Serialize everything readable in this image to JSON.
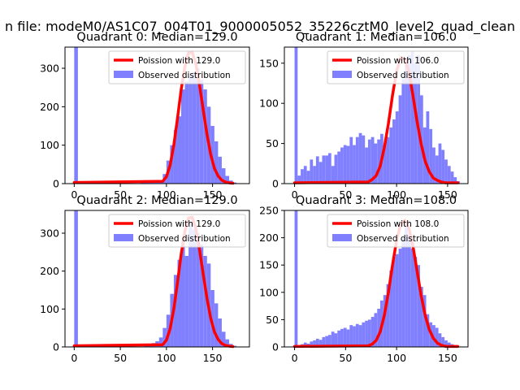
{
  "suptitle": "n file: modeM0/AS1C07_004T01_9000005052_35226cztM0_level2_quad_clean",
  "colors": {
    "line": "#ff0000",
    "bars": "#8080ff",
    "axes": "#000000"
  },
  "chart_data": [
    {
      "type": "bar",
      "title": "Quadrant 0: Median=129.0",
      "xlim": [
        -10,
        190
      ],
      "ylim": [
        0,
        355
      ],
      "xticks": [
        0,
        50,
        100,
        150
      ],
      "yticks": [
        0,
        100,
        200,
        300
      ],
      "legend": {
        "location": "top-right",
        "line_label": "Poission with 129.0",
        "bar_label": "Observed distribution"
      },
      "histogram": {
        "bin_width": 4,
        "bin_starts": [
          0,
          72,
          76,
          80,
          84,
          88,
          92,
          96,
          100,
          104,
          108,
          112,
          116,
          120,
          124,
          128,
          132,
          136,
          140,
          144,
          148,
          152,
          156,
          160,
          164,
          168,
          172
        ],
        "counts": [
          355,
          3,
          7,
          8,
          5,
          4,
          8,
          25,
          60,
          100,
          140,
          175,
          245,
          265,
          280,
          290,
          300,
          270,
          245,
          200,
          150,
          110,
          70,
          40,
          20,
          8,
          3
        ]
      },
      "poisson": {
        "x": [
          0,
          96,
          100,
          104,
          108,
          112,
          116,
          120,
          124,
          128,
          132,
          136,
          140,
          144,
          148,
          152,
          156,
          160,
          164,
          168,
          172
        ],
        "y": [
          3,
          6,
          18,
          48,
          100,
          170,
          245,
          305,
          340,
          342,
          310,
          255,
          190,
          128,
          76,
          40,
          20,
          9,
          4,
          2,
          1
        ]
      }
    },
    {
      "type": "bar",
      "title": "Quadrant 1: Median=106.0",
      "xlim": [
        -10,
        170
      ],
      "ylim": [
        0,
        170
      ],
      "xticks": [
        0,
        50,
        100,
        150
      ],
      "yticks": [
        0,
        50,
        100,
        150
      ],
      "legend": {
        "location": "top-right",
        "line_label": "Poission with 106.0",
        "bar_label": "Observed distribution"
      },
      "histogram": {
        "bin_width": 3,
        "bin_starts": [
          0,
          3,
          6,
          9,
          12,
          15,
          18,
          21,
          24,
          27,
          30,
          33,
          36,
          39,
          42,
          45,
          48,
          51,
          54,
          57,
          60,
          63,
          66,
          69,
          72,
          75,
          78,
          81,
          84,
          87,
          90,
          93,
          96,
          99,
          102,
          105,
          108,
          111,
          114,
          117,
          120,
          123,
          126,
          129,
          132,
          135,
          138,
          141,
          144,
          147,
          150,
          153,
          156,
          159
        ],
        "counts": [
          170,
          10,
          18,
          22,
          16,
          30,
          22,
          34,
          27,
          35,
          35,
          38,
          22,
          36,
          40,
          45,
          48,
          47,
          58,
          48,
          58,
          63,
          60,
          45,
          55,
          58,
          50,
          55,
          62,
          48,
          58,
          70,
          80,
          90,
          110,
          130,
          148,
          160,
          165,
          150,
          160,
          110,
          70,
          90,
          68,
          45,
          35,
          50,
          42,
          30,
          22,
          15,
          8,
          3
        ]
      },
      "poisson": {
        "x": [
          0,
          72,
          76,
          80,
          84,
          88,
          92,
          96,
          100,
          104,
          108,
          112,
          116,
          120,
          124,
          128,
          132,
          136,
          140,
          144,
          148,
          152,
          156,
          160
        ],
        "y": [
          1,
          2,
          5,
          10,
          22,
          45,
          75,
          110,
          140,
          157,
          155,
          140,
          110,
          78,
          50,
          28,
          15,
          7,
          4,
          2,
          1,
          1,
          1,
          1
        ]
      }
    },
    {
      "type": "bar",
      "title": "Quadrant 2: Median=129.0",
      "xlim": [
        -10,
        190
      ],
      "ylim": [
        0,
        360
      ],
      "xticks": [
        0,
        50,
        100,
        150
      ],
      "yticks": [
        0,
        100,
        200,
        300
      ],
      "legend": {
        "location": "top-right",
        "line_label": "Poission with 129.0",
        "bar_label": "Observed distribution"
      },
      "histogram": {
        "bin_width": 4,
        "bin_starts": [
          0,
          76,
          80,
          84,
          88,
          92,
          96,
          100,
          104,
          108,
          112,
          116,
          120,
          124,
          128,
          132,
          136,
          140,
          144,
          148,
          152,
          156,
          160,
          164,
          168,
          172
        ],
        "counts": [
          360,
          3,
          6,
          10,
          15,
          25,
          50,
          85,
          140,
          190,
          230,
          280,
          240,
          330,
          310,
          300,
          270,
          240,
          220,
          150,
          115,
          75,
          40,
          20,
          8,
          3
        ]
      },
      "poisson": {
        "x": [
          0,
          96,
          100,
          104,
          108,
          112,
          116,
          120,
          124,
          128,
          132,
          136,
          140,
          144,
          148,
          152,
          156,
          160,
          164,
          168,
          172
        ],
        "y": [
          3,
          6,
          18,
          48,
          100,
          170,
          245,
          305,
          340,
          342,
          310,
          255,
          190,
          128,
          76,
          40,
          20,
          9,
          4,
          2,
          1
        ]
      }
    },
    {
      "type": "bar",
      "title": "Quadrant 3: Median=108.0",
      "xlim": [
        -10,
        170
      ],
      "ylim": [
        0,
        250
      ],
      "xticks": [
        0,
        50,
        100,
        150
      ],
      "yticks": [
        0,
        50,
        100,
        150,
        200,
        250
      ],
      "legend": {
        "location": "top-right",
        "line_label": "Poission with 108.0",
        "bar_label": "Observed distribution"
      },
      "histogram": {
        "bin_width": 3,
        "bin_starts": [
          0,
          3,
          6,
          9,
          12,
          15,
          18,
          21,
          24,
          27,
          30,
          33,
          36,
          39,
          42,
          45,
          48,
          51,
          54,
          57,
          60,
          63,
          66,
          69,
          72,
          75,
          78,
          81,
          84,
          87,
          90,
          93,
          96,
          99,
          102,
          105,
          108,
          111,
          114,
          117,
          120,
          123,
          126,
          129,
          132,
          135,
          138,
          141,
          144,
          147,
          150,
          153,
          156
        ],
        "counts": [
          250,
          3,
          5,
          8,
          6,
          10,
          12,
          15,
          13,
          18,
          20,
          22,
          28,
          25,
          30,
          33,
          35,
          32,
          40,
          38,
          42,
          40,
          45,
          48,
          50,
          55,
          62,
          70,
          85,
          95,
          115,
          140,
          165,
          170,
          180,
          200,
          230,
          205,
          180,
          165,
          150,
          110,
          95,
          60,
          45,
          40,
          35,
          25,
          18,
          12,
          8,
          5,
          3
        ]
      },
      "poisson": {
        "x": [
          0,
          72,
          76,
          80,
          84,
          88,
          92,
          96,
          100,
          104,
          108,
          112,
          116,
          120,
          124,
          128,
          132,
          136,
          140,
          144,
          148,
          152,
          156,
          160
        ],
        "y": [
          1,
          2,
          5,
          12,
          28,
          58,
          100,
          150,
          195,
          225,
          232,
          218,
          185,
          140,
          95,
          58,
          32,
          16,
          7,
          3,
          1,
          1,
          1,
          1
        ]
      }
    }
  ]
}
